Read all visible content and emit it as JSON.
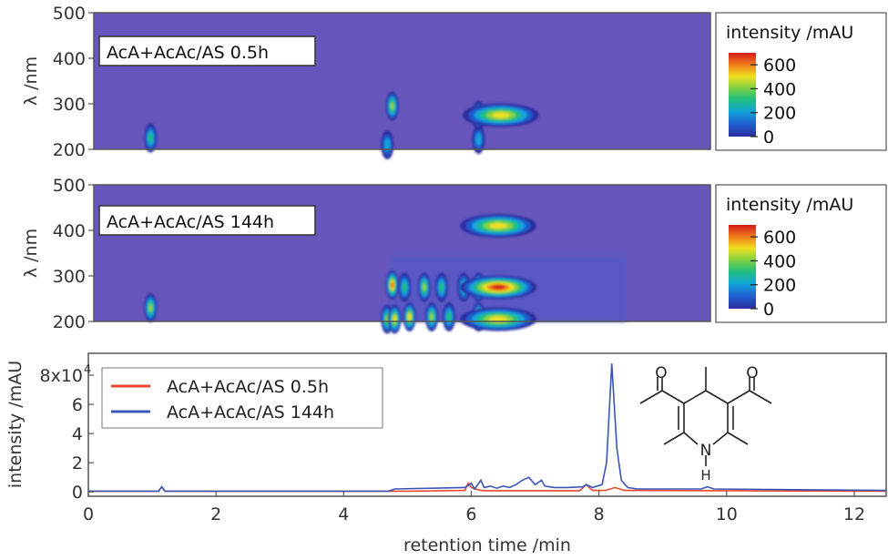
{
  "chart_data": [
    {
      "type": "heatmap",
      "title": "AcA+AcAc/AS 0.5h",
      "ylabel": "λ /nm",
      "xlim": [
        0,
        12.5
      ],
      "ylim": [
        200,
        500
      ],
      "yticks": [
        200,
        300,
        400,
        500
      ],
      "colorbar": {
        "label": "intensity /mAU",
        "ticks": [
          0,
          200,
          400,
          600
        ],
        "range": [
          0,
          700
        ]
      },
      "hotspots": [
        {
          "t": 1.15,
          "wl": 225,
          "intensity": 300
        },
        {
          "t": 5.95,
          "wl": 210,
          "intensity": 250
        },
        {
          "t": 6.05,
          "wl": 295,
          "intensity": 420
        },
        {
          "t": 7.8,
          "wl": 222,
          "intensity": 250
        },
        {
          "t": 7.8,
          "wl": 275,
          "intensity": 300
        },
        {
          "t": 8.25,
          "wl": 275,
          "intensity": 560
        }
      ]
    },
    {
      "type": "heatmap",
      "title": "AcA+AcAc/AS 144h",
      "ylabel": "λ /nm",
      "xlim": [
        0,
        12.5
      ],
      "ylim": [
        200,
        500
      ],
      "yticks": [
        200,
        300,
        400,
        500
      ],
      "colorbar": {
        "label": "intensity /mAU",
        "ticks": [
          0,
          200,
          400,
          600
        ],
        "range": [
          0,
          700
        ]
      },
      "hotspots": [
        {
          "t": 1.15,
          "wl": 230,
          "intensity": 400
        },
        {
          "t": 5.95,
          "wl": 205,
          "intensity": 420
        },
        {
          "t": 6.05,
          "wl": 280,
          "intensity": 650
        },
        {
          "t": 6.1,
          "wl": 205,
          "intensity": 550
        },
        {
          "t": 6.3,
          "wl": 275,
          "intensity": 350
        },
        {
          "t": 6.4,
          "wl": 210,
          "intensity": 500
        },
        {
          "t": 6.7,
          "wl": 275,
          "intensity": 400
        },
        {
          "t": 6.85,
          "wl": 210,
          "intensity": 450
        },
        {
          "t": 7.05,
          "wl": 275,
          "intensity": 380
        },
        {
          "t": 7.2,
          "wl": 210,
          "intensity": 300
        },
        {
          "t": 7.5,
          "wl": 275,
          "intensity": 350
        },
        {
          "t": 7.8,
          "wl": 275,
          "intensity": 500
        },
        {
          "t": 7.8,
          "wl": 210,
          "intensity": 500
        },
        {
          "t": 8.2,
          "wl": 275,
          "intensity": 700
        },
        {
          "t": 8.2,
          "wl": 410,
          "intensity": 550
        },
        {
          "t": 8.2,
          "wl": 205,
          "intensity": 500
        }
      ]
    },
    {
      "type": "line",
      "xlabel": "retention time /min",
      "ylabel": "intensity /mAU",
      "xlim": [
        0,
        12.5
      ],
      "ylim": [
        -0.3,
        9.5
      ],
      "xticks": [
        0,
        2,
        4,
        6,
        8,
        10,
        12
      ],
      "yticks": [
        0,
        2,
        4,
        6,
        8
      ],
      "ytick_labels": [
        "0",
        "2",
        "4",
        "6",
        "8x10"
      ],
      "ytick_exponent": "4",
      "series": [
        {
          "name": "AcA+AcAc/AS 0.5h",
          "color": "#e8452a",
          "x": [
            0,
            1.1,
            1.15,
            1.2,
            5.0,
            5.9,
            5.95,
            6.0,
            6.1,
            6.2,
            7.7,
            7.8,
            7.9,
            8.1,
            8.25,
            8.4,
            12.5
          ],
          "y": [
            0.05,
            0.05,
            0.35,
            0.05,
            0.05,
            0.1,
            0.6,
            0.3,
            0.15,
            0.08,
            0.08,
            0.5,
            0.1,
            0.1,
            0.3,
            0.1,
            0.05
          ]
        },
        {
          "name": "AcA+AcAc/AS 144h",
          "color": "#3a55b8",
          "x": [
            0,
            1.1,
            1.15,
            1.2,
            4.7,
            4.8,
            5.9,
            6.0,
            6.05,
            6.15,
            6.2,
            6.3,
            6.4,
            6.5,
            6.6,
            6.7,
            6.8,
            6.9,
            7.0,
            7.1,
            7.15,
            7.3,
            7.5,
            7.75,
            7.8,
            7.9,
            8.05,
            8.12,
            8.2,
            8.28,
            8.35,
            8.45,
            8.6,
            9.6,
            9.7,
            9.8,
            12.5
          ],
          "y": [
            0.05,
            0.05,
            0.35,
            0.05,
            0.05,
            0.2,
            0.3,
            0.6,
            0.2,
            0.8,
            0.3,
            0.4,
            0.25,
            0.4,
            0.3,
            0.5,
            0.8,
            1.0,
            0.5,
            0.8,
            0.4,
            0.3,
            0.3,
            0.35,
            0.5,
            0.3,
            0.5,
            2.0,
            8.8,
            3.0,
            0.8,
            0.3,
            0.2,
            0.2,
            0.35,
            0.2,
            0.1
          ]
        }
      ]
    }
  ],
  "structure": {
    "nh_label": "N",
    "h_label": "H"
  }
}
